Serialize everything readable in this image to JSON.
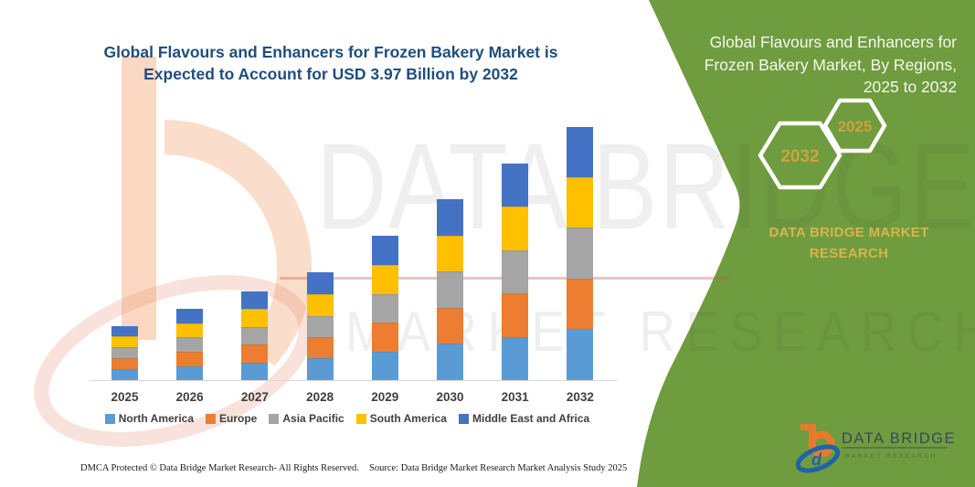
{
  "chart_data": {
    "type": "bar",
    "stacked": true,
    "title": "Global Flavours and Enhancers for Frozen Bakery Market is Expected to Account for USD 3.97 Billion by 2032",
    "title_lines": [
      "Global Flavours and Enhancers for Frozen Bakery Market is",
      "Expected to Account for USD 3.97 Billion by 2032"
    ],
    "unit": "USD Billion",
    "value_axis_visible": false,
    "legend_position": "bottom",
    "categories": [
      "2025",
      "2026",
      "2027",
      "2028",
      "2029",
      "2030",
      "2031",
      "2032"
    ],
    "series": [
      {
        "name": "North America",
        "color": "#5b9bd5",
        "values": [
          0.17,
          0.22,
          0.28,
          0.34,
          0.45,
          0.57,
          0.68,
          0.8
        ]
      },
      {
        "name": "Europe",
        "color": "#ed7d31",
        "values": [
          0.17,
          0.23,
          0.28,
          0.34,
          0.45,
          0.56,
          0.68,
          0.79
        ]
      },
      {
        "name": "Asia Pacific",
        "color": "#a5a5a5",
        "values": [
          0.17,
          0.22,
          0.28,
          0.33,
          0.45,
          0.57,
          0.68,
          0.8
        ]
      },
      {
        "name": "South America",
        "color": "#ffc000",
        "values": [
          0.17,
          0.22,
          0.28,
          0.34,
          0.45,
          0.56,
          0.68,
          0.79
        ]
      },
      {
        "name": "Middle East and Africa",
        "color": "#4472c4",
        "values": [
          0.17,
          0.23,
          0.28,
          0.34,
          0.46,
          0.57,
          0.68,
          0.79
        ]
      }
    ],
    "totals": [
      0.85,
      1.12,
      1.4,
      1.69,
      2.26,
      2.83,
      3.4,
      3.97
    ],
    "axis_line_color": "#d9d9d9"
  },
  "right_panel": {
    "heading_lines": [
      "Global Flavours and Enhancers for",
      "Frozen Bakery Market, By Regions,",
      "2025 to 2032"
    ],
    "hexagon_back_label": "2032",
    "hexagon_front_label": "2025",
    "brand_line1": "DATA BRIDGE MARKET",
    "brand_line2": "RESEARCH",
    "panel_color": "#6f9c3f",
    "gold_color": "#d9b44e"
  },
  "logo": {
    "brand": "DATA BRIDGE",
    "subtitle": "MARKET RESEARCH",
    "monogram": "d"
  },
  "watermark": {
    "line1": "DATA BRIDGE",
    "line2": "MARKET RESEARCH"
  },
  "footer": {
    "left": "DMCA Protected © Data Bridge Market Research-  All Rights Reserved.",
    "right": "Source: Data Bridge Market Research  Market Analysis Study 2025"
  }
}
